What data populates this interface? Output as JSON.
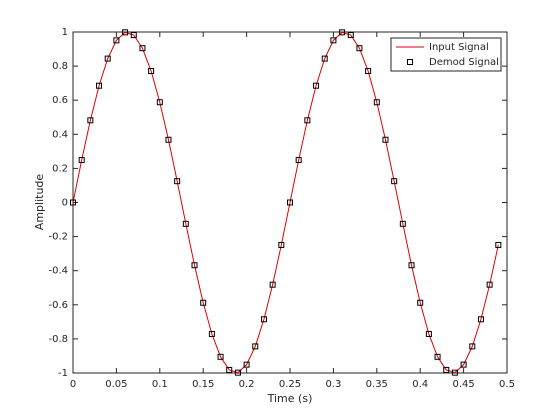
{
  "chart_data": {
    "type": "line",
    "xlabel": "Time (s)",
    "ylabel": "Amplitude",
    "x": [
      0,
      0.01,
      0.02,
      0.03,
      0.04,
      0.05,
      0.06,
      0.07,
      0.08,
      0.09,
      0.1,
      0.11,
      0.12,
      0.13,
      0.14,
      0.15,
      0.16,
      0.17,
      0.18,
      0.19,
      0.2,
      0.21,
      0.22,
      0.23,
      0.24,
      0.25,
      0.26,
      0.27,
      0.28,
      0.29,
      0.3,
      0.31,
      0.32,
      0.33,
      0.34,
      0.35,
      0.36,
      0.37,
      0.38,
      0.39,
      0.4,
      0.41,
      0.42,
      0.43,
      0.44,
      0.45,
      0.46,
      0.47,
      0.48,
      0.49
    ],
    "series": [
      {
        "name": "Input Signal",
        "color": "#e00000",
        "style": "line",
        "values": [
          0,
          0.249,
          0.482,
          0.685,
          0.844,
          0.951,
          0.998,
          0.982,
          0.905,
          0.771,
          0.588,
          0.368,
          0.125,
          -0.125,
          -0.368,
          -0.588,
          -0.771,
          -0.905,
          -0.982,
          -0.998,
          -0.951,
          -0.844,
          -0.685,
          -0.482,
          -0.249,
          0,
          0.249,
          0.482,
          0.685,
          0.844,
          0.951,
          0.998,
          0.982,
          0.905,
          0.771,
          0.588,
          0.368,
          0.125,
          -0.125,
          -0.368,
          -0.588,
          -0.771,
          -0.905,
          -0.982,
          -0.998,
          -0.951,
          -0.844,
          -0.685,
          -0.482,
          -0.249
        ]
      },
      {
        "name": "Demod Signal",
        "color": "#000000",
        "style": "marker",
        "values": [
          0,
          0.249,
          0.482,
          0.685,
          0.844,
          0.951,
          0.998,
          0.982,
          0.905,
          0.771,
          0.588,
          0.368,
          0.125,
          -0.125,
          -0.368,
          -0.588,
          -0.771,
          -0.905,
          -0.982,
          -0.998,
          -0.951,
          -0.844,
          -0.685,
          -0.482,
          -0.249,
          0,
          0.249,
          0.482,
          0.685,
          0.844,
          0.951,
          0.998,
          0.982,
          0.905,
          0.771,
          0.588,
          0.368,
          0.125,
          -0.125,
          -0.368,
          -0.588,
          -0.771,
          -0.905,
          -0.982,
          -0.998,
          -0.951,
          -0.844,
          -0.685,
          -0.482,
          -0.249
        ]
      }
    ],
    "xlim": [
      0,
      0.5
    ],
    "xticks": [
      0,
      0.05,
      0.1,
      0.15,
      0.2,
      0.25,
      0.3,
      0.35,
      0.4,
      0.45,
      0.5
    ],
    "ylim": [
      -1,
      1
    ],
    "yticks": [
      -1,
      -0.8,
      -0.6,
      -0.4,
      -0.2,
      0,
      0.2,
      0.4,
      0.6,
      0.8,
      1
    ],
    "legend": "top-right",
    "grid": false
  }
}
